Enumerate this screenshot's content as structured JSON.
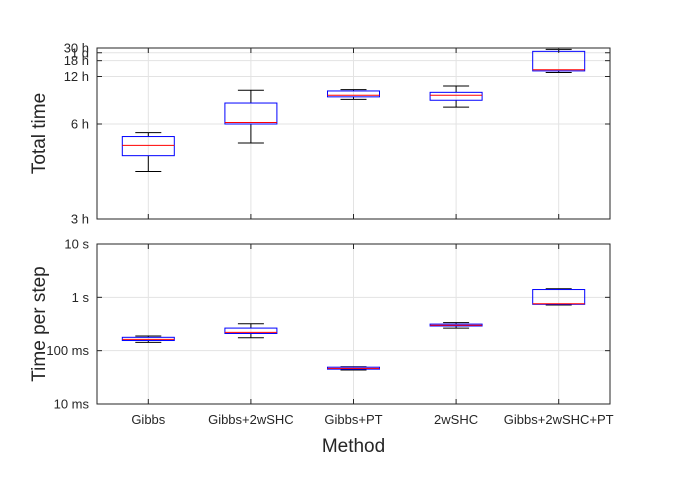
{
  "chart_data": [
    {
      "type": "box",
      "ylabel": "Total time",
      "xlabel": "",
      "yscale": "reciprocal",
      "ylim_hours": [
        3,
        30
      ],
      "yticks": [
        {
          "value": 3,
          "label": "3 h"
        },
        {
          "value": 6,
          "label": "6 h"
        },
        {
          "value": 12,
          "label": "12 h"
        },
        {
          "value": 18,
          "label": "18 h"
        },
        {
          "value": 24,
          "label": "1 d"
        },
        {
          "value": 30,
          "label": "30 h"
        }
      ],
      "grid": true,
      "categories": [
        "Gibbs",
        "Gibbs+2wSHC",
        "Gibbs+PT",
        "2wSHC",
        "Gibbs+2wSHC+PT"
      ],
      "boxes": [
        {
          "min": 4.0,
          "q1": 4.5,
          "median": 4.9,
          "q3": 5.3,
          "max": 5.5
        },
        {
          "min": 5.0,
          "q1": 6.0,
          "median": 6.1,
          "q3": 7.7,
          "max": 9.3
        },
        {
          "min": 8.1,
          "q1": 8.4,
          "median": 8.6,
          "q3": 9.2,
          "max": 9.4
        },
        {
          "min": 7.3,
          "q1": 8.0,
          "median": 8.6,
          "q3": 9.0,
          "max": 10.0
        },
        {
          "min": 13.1,
          "q1": 13.6,
          "median": 14.0,
          "q3": 25.5,
          "max": 28.0
        }
      ]
    },
    {
      "type": "box",
      "ylabel": "Time per step",
      "xlabel": "Method",
      "yscale": "log",
      "ylim_seconds": [
        0.01,
        10
      ],
      "yticks": [
        {
          "value": 0.01,
          "label": "10 ms"
        },
        {
          "value": 0.1,
          "label": "100 ms"
        },
        {
          "value": 1,
          "label": "1 s"
        },
        {
          "value": 10,
          "label": "10 s"
        }
      ],
      "grid": true,
      "categories": [
        "Gibbs",
        "Gibbs+2wSHC",
        "Gibbs+PT",
        "2wSHC",
        "Gibbs+2wSHC+PT"
      ],
      "boxes": [
        {
          "min": 0.143,
          "q1": 0.155,
          "median": 0.163,
          "q3": 0.178,
          "max": 0.188
        },
        {
          "min": 0.175,
          "q1": 0.21,
          "median": 0.22,
          "q3": 0.265,
          "max": 0.32
        },
        {
          "min": 0.0435,
          "q1": 0.045,
          "median": 0.0465,
          "q3": 0.049,
          "max": 0.05
        },
        {
          "min": 0.265,
          "q1": 0.29,
          "median": 0.3,
          "q3": 0.315,
          "max": 0.335
        },
        {
          "min": 0.72,
          "q1": 0.74,
          "median": 0.76,
          "q3": 1.4,
          "max": 1.45
        }
      ]
    }
  ],
  "style": {
    "box_color": "#0000ff",
    "median_color": "#ff0000",
    "whisker_color": "#000000"
  }
}
